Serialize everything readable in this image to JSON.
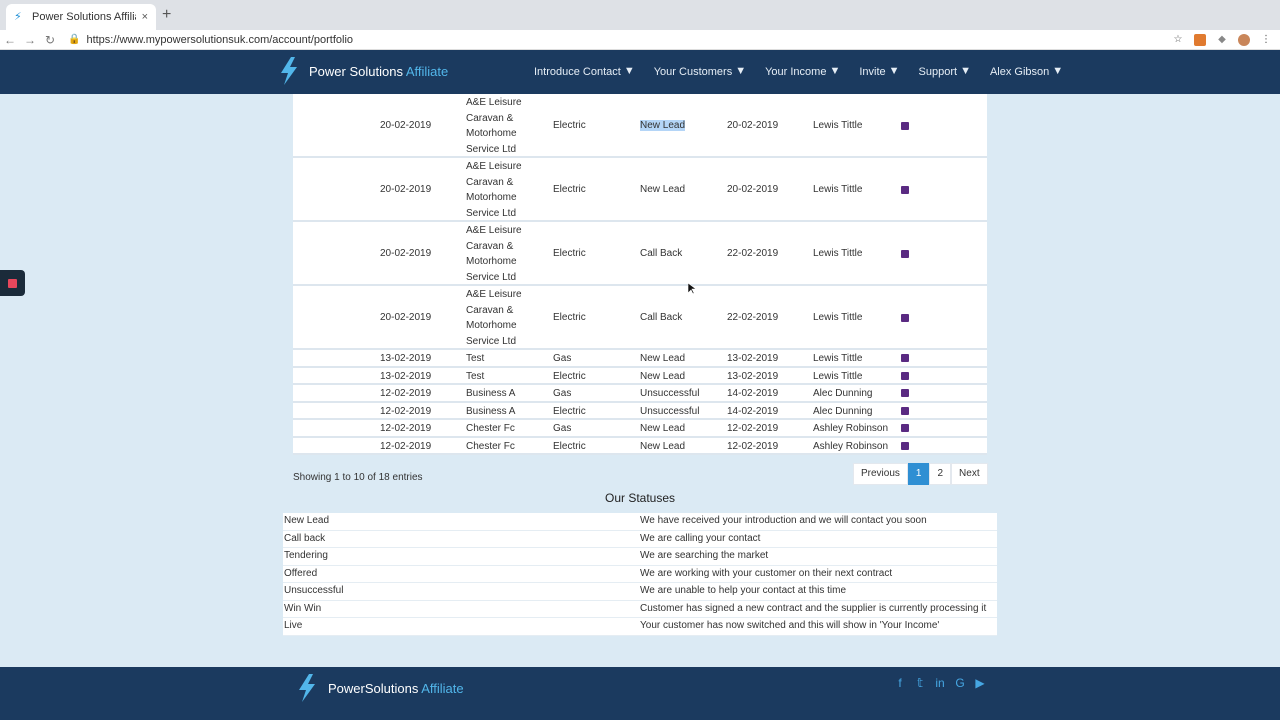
{
  "browser": {
    "tab_title": "Power Solutions Affiliate - My",
    "tab_close": "×",
    "new_tab": "+",
    "url": "https://www.mypowersolutionsuk.com/account/portfolio"
  },
  "site": {
    "brand_main": "Power Solutions",
    "brand_accent": "Affiliate",
    "nav": [
      {
        "label": "Introduce Contact"
      },
      {
        "label": "Your Customers"
      },
      {
        "label": "Your Income"
      },
      {
        "label": "Invite"
      },
      {
        "label": "Support"
      },
      {
        "label": "Alex Gibson"
      }
    ]
  },
  "table": {
    "rows": [
      {
        "date": "20-02-2019",
        "customer": "A&E Leisure Caravan & Motorhome Service Ltd",
        "type": "Electric",
        "status": "New Lead",
        "status_date": "20-02-2019",
        "agent": "Lewis Tittle",
        "tall": true
      },
      {
        "date": "20-02-2019",
        "customer": "A&E Leisure Caravan & Motorhome Service Ltd",
        "type": "Electric",
        "status": "New Lead",
        "status_date": "20-02-2019",
        "agent": "Lewis Tittle",
        "tall": true
      },
      {
        "date": "20-02-2019",
        "customer": "A&E Leisure Caravan & Motorhome Service Ltd",
        "type": "Electric",
        "status": "Call Back",
        "status_date": "22-02-2019",
        "agent": "Lewis Tittle",
        "tall": true
      },
      {
        "date": "20-02-2019",
        "customer": "A&E Leisure Caravan & Motorhome Service Ltd",
        "type": "Electric",
        "status": "Call Back",
        "status_date": "22-02-2019",
        "agent": "Lewis Tittle",
        "tall": true
      },
      {
        "date": "13-02-2019",
        "customer": "Test",
        "type": "Gas",
        "status": "New Lead",
        "status_date": "13-02-2019",
        "agent": "Lewis Tittle",
        "tall": false
      },
      {
        "date": "13-02-2019",
        "customer": "Test",
        "type": "Electric",
        "status": "New Lead",
        "status_date": "13-02-2019",
        "agent": "Lewis Tittle",
        "tall": false
      },
      {
        "date": "12-02-2019",
        "customer": "Business A",
        "type": "Gas",
        "status": "Unsuccessful",
        "status_date": "14-02-2019",
        "agent": "Alec Dunning",
        "tall": false
      },
      {
        "date": "12-02-2019",
        "customer": "Business A",
        "type": "Electric",
        "status": "Unsuccessful",
        "status_date": "14-02-2019",
        "agent": "Alec Dunning",
        "tall": false
      },
      {
        "date": "12-02-2019",
        "customer": "Chester Fc",
        "type": "Gas",
        "status": "New Lead",
        "status_date": "12-02-2019",
        "agent": "Ashley Robinson",
        "tall": false
      },
      {
        "date": "12-02-2019",
        "customer": "Chester Fc",
        "type": "Electric",
        "status": "New Lead",
        "status_date": "12-02-2019",
        "agent": "Ashley Robinson",
        "tall": false
      }
    ],
    "note_icon_color": "#5a2a82",
    "showing": "Showing 1 to 10 of 18 entries",
    "pager": {
      "previous": "Previous",
      "page1": "1",
      "page2": "2",
      "next": "Next"
    }
  },
  "statuses": {
    "title": "Our Statuses",
    "items": [
      {
        "name": "New Lead",
        "desc": "We have received your introduction and we will contact you soon"
      },
      {
        "name": "Call back",
        "desc": "We are calling your contact"
      },
      {
        "name": "Tendering",
        "desc": "We are searching the market"
      },
      {
        "name": "Offered",
        "desc": "We are working with your customer on their next contract"
      },
      {
        "name": "Unsuccessful",
        "desc": "We are unable to help your contact at this time"
      },
      {
        "name": "Win Win",
        "desc": "Customer has signed a new contract and the supplier is currently processing it"
      },
      {
        "name": "Live",
        "desc": "Your customer has now switched and this will show in 'Your Income'"
      }
    ]
  },
  "footer": {
    "brand_main": "PowerSolutions",
    "brand_accent": "Affiliate",
    "extra": "... ... ...",
    "social": [
      "facebook-icon",
      "twitter-icon",
      "linkedin-icon",
      "google-plus-icon",
      "youtube-icon"
    ]
  },
  "colors": {
    "header_bg": "#1b3a5f",
    "accent": "#52b6ea",
    "page_bg": "#dbeaf4",
    "pager_active": "#2f8fd3"
  }
}
